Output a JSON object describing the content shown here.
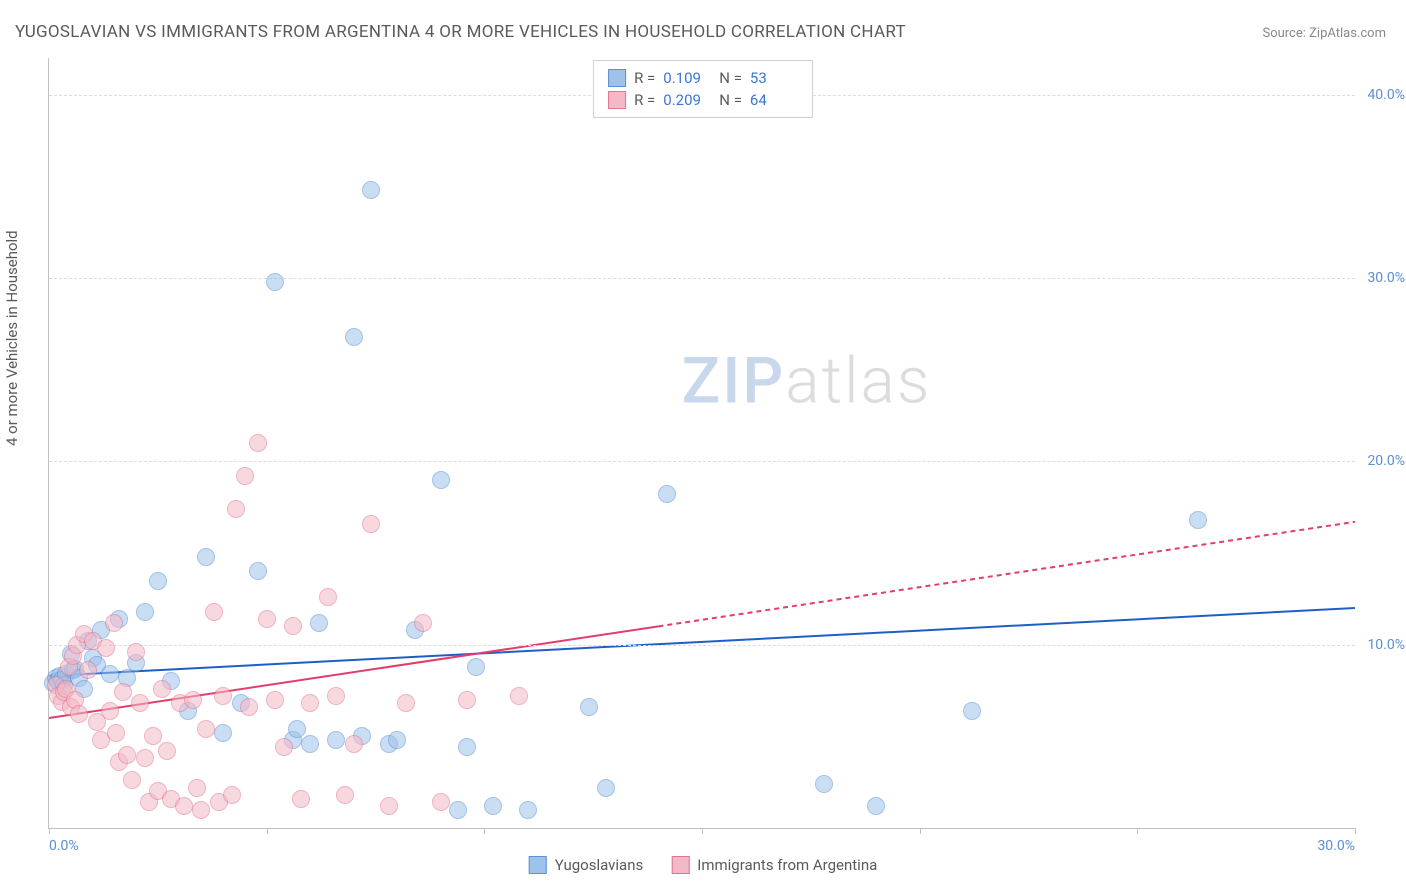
{
  "title": "YUGOSLAVIAN VS IMMIGRANTS FROM ARGENTINA 4 OR MORE VEHICLES IN HOUSEHOLD CORRELATION CHART",
  "source": "Source: ZipAtlas.com",
  "ylabel": "4 or more Vehicles in Household",
  "watermark_a": "ZIP",
  "watermark_b": "atlas",
  "chart": {
    "type": "scatter",
    "background_color": "#ffffff",
    "grid_color": "#dcdcdc",
    "axis_color": "#c0c0c0",
    "tick_label_color": "#5b8fd6",
    "xlim": [
      0,
      30
    ],
    "ylim": [
      0,
      42
    ],
    "xtick_positions": [
      0,
      5,
      10,
      15,
      20,
      25,
      30
    ],
    "xtick_labels": [
      "0.0%",
      "",
      "",
      "",
      "",
      "",
      "30.0%"
    ],
    "ytick_positions": [
      10,
      20,
      30,
      40
    ],
    "ytick_labels": [
      "10.0%",
      "20.0%",
      "30.0%",
      "40.0%"
    ],
    "marker_radius": 8,
    "marker_opacity": 0.55,
    "series": [
      {
        "id": "yugoslavians",
        "label": "Yugoslavians",
        "fill": "#9ec3ea",
        "stroke": "#5b8fd6",
        "R": "0.109",
        "N": "53",
        "trend": {
          "x1": 0,
          "y1": 8.3,
          "x2": 30,
          "y2": 12.0,
          "color": "#1f5fc4",
          "width": 2,
          "dash": "none"
        },
        "points": [
          [
            0.1,
            7.9
          ],
          [
            0.15,
            8.2
          ],
          [
            0.2,
            8.0
          ],
          [
            0.25,
            8.3
          ],
          [
            0.3,
            8.1
          ],
          [
            0.35,
            7.8
          ],
          [
            0.4,
            8.4
          ],
          [
            0.5,
            9.5
          ],
          [
            0.55,
            8.6
          ],
          [
            0.6,
            8.7
          ],
          [
            0.7,
            8.2
          ],
          [
            0.8,
            7.6
          ],
          [
            0.9,
            10.2
          ],
          [
            1.0,
            9.3
          ],
          [
            1.1,
            8.9
          ],
          [
            1.2,
            10.8
          ],
          [
            1.4,
            8.4
          ],
          [
            1.6,
            11.4
          ],
          [
            1.8,
            8.2
          ],
          [
            2.0,
            9.0
          ],
          [
            2.2,
            11.8
          ],
          [
            2.5,
            13.5
          ],
          [
            2.8,
            8.0
          ],
          [
            3.2,
            6.4
          ],
          [
            3.6,
            14.8
          ],
          [
            4.0,
            5.2
          ],
          [
            4.4,
            6.8
          ],
          [
            4.8,
            14.0
          ],
          [
            5.2,
            29.8
          ],
          [
            5.6,
            4.8
          ],
          [
            5.7,
            5.4
          ],
          [
            6.0,
            4.6
          ],
          [
            6.2,
            11.2
          ],
          [
            6.6,
            4.8
          ],
          [
            7.0,
            26.8
          ],
          [
            7.2,
            5.0
          ],
          [
            7.4,
            34.8
          ],
          [
            7.8,
            4.6
          ],
          [
            8.0,
            4.8
          ],
          [
            8.4,
            10.8
          ],
          [
            9.0,
            19.0
          ],
          [
            9.4,
            1.0
          ],
          [
            9.6,
            4.4
          ],
          [
            9.8,
            8.8
          ],
          [
            10.2,
            1.2
          ],
          [
            11.0,
            1.0
          ],
          [
            12.4,
            6.6
          ],
          [
            12.8,
            2.2
          ],
          [
            14.2,
            18.2
          ],
          [
            17.8,
            2.4
          ],
          [
            21.2,
            6.4
          ],
          [
            26.4,
            16.8
          ],
          [
            19.0,
            1.2
          ]
        ]
      },
      {
        "id": "argentina",
        "label": "Immigrants from Argentina",
        "fill": "#f3b9c6",
        "stroke": "#e5738f",
        "R": "0.209",
        "N": "64",
        "trend": {
          "x1": 0,
          "y1": 6.0,
          "x2": 14,
          "y2": 11.0,
          "color": "#e23d6b",
          "width": 2,
          "dash": "none",
          "extend": {
            "x2": 30,
            "y2": 16.7,
            "dash": "5,4"
          }
        },
        "points": [
          [
            0.15,
            7.8
          ],
          [
            0.2,
            7.2
          ],
          [
            0.3,
            6.9
          ],
          [
            0.35,
            7.4
          ],
          [
            0.4,
            7.6
          ],
          [
            0.45,
            8.8
          ],
          [
            0.5,
            6.6
          ],
          [
            0.55,
            9.4
          ],
          [
            0.6,
            7.0
          ],
          [
            0.65,
            10.0
          ],
          [
            0.7,
            6.2
          ],
          [
            0.8,
            10.6
          ],
          [
            0.9,
            8.6
          ],
          [
            1.0,
            10.2
          ],
          [
            1.1,
            5.8
          ],
          [
            1.2,
            4.8
          ],
          [
            1.3,
            9.8
          ],
          [
            1.4,
            6.4
          ],
          [
            1.5,
            11.2
          ],
          [
            1.55,
            5.2
          ],
          [
            1.6,
            3.6
          ],
          [
            1.7,
            7.4
          ],
          [
            1.8,
            4.0
          ],
          [
            1.9,
            2.6
          ],
          [
            2.0,
            9.6
          ],
          [
            2.1,
            6.8
          ],
          [
            2.2,
            3.8
          ],
          [
            2.3,
            1.4
          ],
          [
            2.4,
            5.0
          ],
          [
            2.5,
            2.0
          ],
          [
            2.6,
            7.6
          ],
          [
            2.7,
            4.2
          ],
          [
            2.8,
            1.6
          ],
          [
            3.0,
            6.8
          ],
          [
            3.1,
            1.2
          ],
          [
            3.3,
            7.0
          ],
          [
            3.4,
            2.2
          ],
          [
            3.5,
            1.0
          ],
          [
            3.6,
            5.4
          ],
          [
            3.8,
            11.8
          ],
          [
            3.9,
            1.4
          ],
          [
            4.0,
            7.2
          ],
          [
            4.2,
            1.8
          ],
          [
            4.3,
            17.4
          ],
          [
            4.5,
            19.2
          ],
          [
            4.6,
            6.6
          ],
          [
            4.8,
            21.0
          ],
          [
            5.0,
            11.4
          ],
          [
            5.2,
            7.0
          ],
          [
            5.4,
            4.4
          ],
          [
            5.6,
            11.0
          ],
          [
            5.8,
            1.6
          ],
          [
            6.0,
            6.8
          ],
          [
            6.4,
            12.6
          ],
          [
            6.6,
            7.2
          ],
          [
            6.8,
            1.8
          ],
          [
            7.0,
            4.6
          ],
          [
            7.4,
            16.6
          ],
          [
            7.8,
            1.2
          ],
          [
            8.2,
            6.8
          ],
          [
            8.6,
            11.2
          ],
          [
            9.0,
            1.4
          ],
          [
            9.6,
            7.0
          ],
          [
            10.8,
            7.2
          ]
        ]
      }
    ]
  },
  "legend_top": {
    "r_label": "R  =",
    "n_label": "N  ="
  }
}
